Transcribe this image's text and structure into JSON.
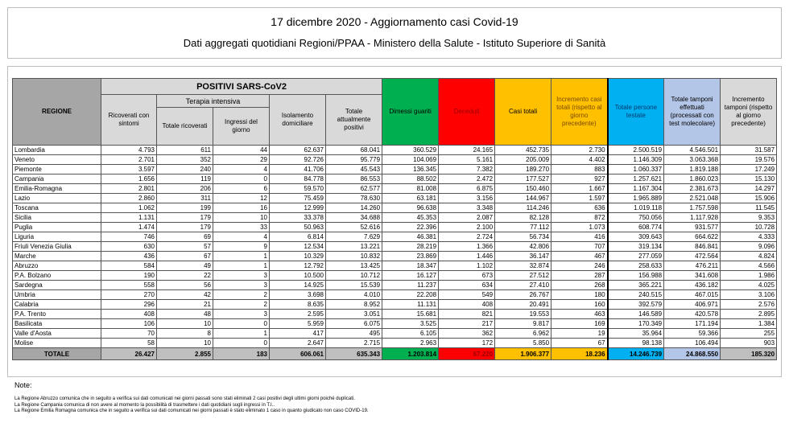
{
  "title": "17 dicembre 2020 - Aggiornamento casi Covid-19",
  "subtitle": "Dati aggregati quotidiani Regioni/PPAA - Ministero della Salute - Istituto Superiore di Sanità",
  "colors": {
    "dimessi": "#00b050",
    "deceduti": "#ff0000",
    "casi": "#ffc000",
    "persone": "#00b0f0",
    "tamponi": "#b4c6e7",
    "gray": "#d9d9d9"
  },
  "headers": {
    "regione": "REGIONE",
    "positivi": "POSITIVI SARS-CoV2",
    "terapia": "Terapia intensiva",
    "ricoverati": "Ricoverati con sintomi",
    "totale_ricoverati": "Totale ricoverati",
    "ingressi": "Ingressi del giorno",
    "isolamento": "Isolamento domiciliare",
    "totale_positivi": "Totale attualmente positivi",
    "dimessi": "Dimessi guariti",
    "deceduti": "Deceduti",
    "casi": "Casi totali",
    "incremento_casi": "Incremento casi totali (rispetto al giorno precedente)",
    "persone": "Totale persone testate",
    "tamponi": "Totale tamponi effettuati (processati con test molecolare)",
    "incremento_tamponi": "Incremento tamponi (rispetto al giorno precedente)"
  },
  "rows": [
    [
      "Lombardia",
      "4.793",
      "611",
      "44",
      "62.637",
      "68.041",
      "360.529",
      "24.165",
      "452.735",
      "2.730",
      "2.500.519",
      "4.546.501",
      "31.587"
    ],
    [
      "Veneto",
      "2.701",
      "352",
      "29",
      "92.726",
      "95.779",
      "104.069",
      "5.161",
      "205.009",
      "4.402",
      "1.146.309",
      "3.063.368",
      "19.576"
    ],
    [
      "Piemonte",
      "3.597",
      "240",
      "4",
      "41.706",
      "45.543",
      "136.345",
      "7.382",
      "189.270",
      "883",
      "1.060.337",
      "1.819.188",
      "17.249"
    ],
    [
      "Campania",
      "1.656",
      "119",
      "0",
      "84.778",
      "86.553",
      "88.502",
      "2.472",
      "177.527",
      "927",
      "1.257.621",
      "1.860.023",
      "15.130"
    ],
    [
      "Emilia-Romagna",
      "2.801",
      "206",
      "6",
      "59.570",
      "62.577",
      "81.008",
      "6.875",
      "150.460",
      "1.667",
      "1.167.304",
      "2.381.673",
      "14.297"
    ],
    [
      "Lazio",
      "2.860",
      "311",
      "12",
      "75.459",
      "78.630",
      "63.181",
      "3.156",
      "144.967",
      "1.597",
      "1.965.889",
      "2.521.048",
      "15.906"
    ],
    [
      "Toscana",
      "1.062",
      "199",
      "16",
      "12.999",
      "14.260",
      "96.638",
      "3.348",
      "114.246",
      "636",
      "1.019.118",
      "1.757.598",
      "11.545"
    ],
    [
      "Sicilia",
      "1.131",
      "179",
      "10",
      "33.378",
      "34.688",
      "45.353",
      "2.087",
      "82.128",
      "872",
      "750.056",
      "1.117.928",
      "9.353"
    ],
    [
      "Puglia",
      "1.474",
      "179",
      "33",
      "50.963",
      "52.616",
      "22.396",
      "2.100",
      "77.112",
      "1.073",
      "608.774",
      "931.577",
      "10.728"
    ],
    [
      "Liguria",
      "746",
      "69",
      "4",
      "6.814",
      "7.629",
      "46.381",
      "2.724",
      "56.734",
      "416",
      "309.643",
      "664.622",
      "4.333"
    ],
    [
      "Friuli Venezia Giulia",
      "630",
      "57",
      "9",
      "12.534",
      "13.221",
      "28.219",
      "1.366",
      "42.806",
      "707",
      "319.134",
      "846.841",
      "9.096"
    ],
    [
      "Marche",
      "436",
      "67",
      "1",
      "10.329",
      "10.832",
      "23.869",
      "1.446",
      "36.147",
      "467",
      "277.059",
      "472.564",
      "4.824"
    ],
    [
      "Abruzzo",
      "584",
      "49",
      "1",
      "12.792",
      "13.425",
      "18.347",
      "1.102",
      "32.874",
      "246",
      "258.633",
      "476.211",
      "4.566"
    ],
    [
      "P.A. Bolzano",
      "190",
      "22",
      "3",
      "10.500",
      "10.712",
      "16.127",
      "673",
      "27.512",
      "287",
      "156.988",
      "341.608",
      "1.986"
    ],
    [
      "Sardegna",
      "558",
      "56",
      "3",
      "14.925",
      "15.539",
      "11.237",
      "634",
      "27.410",
      "268",
      "365.221",
      "436.182",
      "4.025"
    ],
    [
      "Umbria",
      "270",
      "42",
      "2",
      "3.698",
      "4.010",
      "22.208",
      "549",
      "26.767",
      "180",
      "240.515",
      "467.015",
      "3.106"
    ],
    [
      "Calabria",
      "296",
      "21",
      "2",
      "8.635",
      "8.952",
      "11.131",
      "408",
      "20.491",
      "160",
      "392.579",
      "406.971",
      "2.576"
    ],
    [
      "P.A. Trento",
      "408",
      "48",
      "3",
      "2.595",
      "3.051",
      "15.681",
      "821",
      "19.553",
      "463",
      "146.589",
      "420.578",
      "2.895"
    ],
    [
      "Basilicata",
      "106",
      "10",
      "0",
      "5.959",
      "6.075",
      "3.525",
      "217",
      "9.817",
      "169",
      "170.349",
      "171.194",
      "1.384"
    ],
    [
      "Valle d'Aosta",
      "70",
      "8",
      "1",
      "417",
      "495",
      "6.105",
      "362",
      "6.962",
      "19",
      "35.964",
      "59.366",
      "255"
    ],
    [
      "Molise",
      "58",
      "10",
      "0",
      "2.647",
      "2.715",
      "2.963",
      "172",
      "5.850",
      "67",
      "98.138",
      "106.494",
      "903"
    ]
  ],
  "totale": [
    "TOTALE",
    "26.427",
    "2.855",
    "183",
    "606.061",
    "635.343",
    "1.203.814",
    "67.220",
    "1.906.377",
    "18.236",
    "14.246.739",
    "24.868.550",
    "185.320"
  ],
  "notes": {
    "title": "Note:",
    "lines": [
      "La Regione Abruzzo comunica che in seguito a verifica sui dati comunicati nei giorni passati sono stati eliminati 2 casi positivi degli ultimi giorni poiché duplicati.",
      "La Regione Campania comunica di non avere al momento la possibilità di trasmettere i dati quotidiani sugli ingressi in T.I..",
      "La Regione Emilia Romagna comunica che in seguito a verifica sui dati comunicati nei giorni passati è stato eliminato 1 caso in quanto giudicato non caso COVID-19."
    ]
  }
}
